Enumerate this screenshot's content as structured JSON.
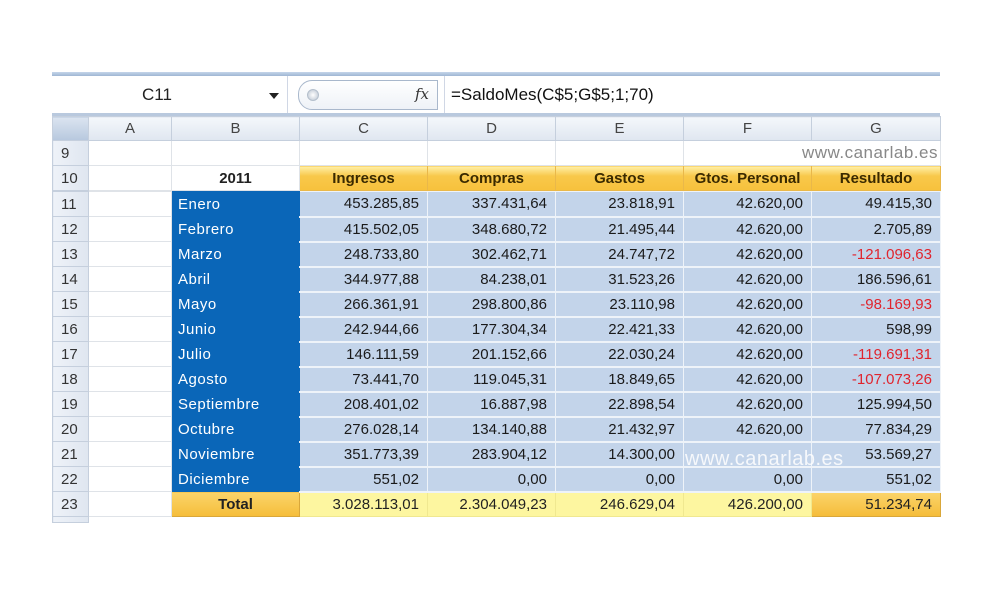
{
  "formula_bar": {
    "name_box": "C11",
    "fx_label": "fx",
    "formula": "=SaldoMes(C$5;G$5;1;70)"
  },
  "columns": [
    "A",
    "B",
    "C",
    "D",
    "E",
    "F",
    "G"
  ],
  "watermark": "www.canarlab.es",
  "rows": {
    "r9": "9",
    "r10": "10"
  },
  "table": {
    "year": "2011",
    "headers": [
      "Ingresos",
      "Compras",
      "Gastos",
      "Gtos. Personal",
      "Resultado"
    ],
    "data": [
      {
        "row": "11",
        "month": "Enero",
        "ingresos": "453.285,85",
        "compras": "337.431,64",
        "gastos": "23.818,91",
        "personal": "42.620,00",
        "resultado": "49.415,30"
      },
      {
        "row": "12",
        "month": "Febrero",
        "ingresos": "415.502,05",
        "compras": "348.680,72",
        "gastos": "21.495,44",
        "personal": "42.620,00",
        "resultado": "2.705,89"
      },
      {
        "row": "13",
        "month": "Marzo",
        "ingresos": "248.733,80",
        "compras": "302.462,71",
        "gastos": "24.747,72",
        "personal": "42.620,00",
        "resultado": "-121.096,63"
      },
      {
        "row": "14",
        "month": "Abril",
        "ingresos": "344.977,88",
        "compras": "84.238,01",
        "gastos": "31.523,26",
        "personal": "42.620,00",
        "resultado": "186.596,61"
      },
      {
        "row": "15",
        "month": "Mayo",
        "ingresos": "266.361,91",
        "compras": "298.800,86",
        "gastos": "23.110,98",
        "personal": "42.620,00",
        "resultado": "-98.169,93"
      },
      {
        "row": "16",
        "month": "Junio",
        "ingresos": "242.944,66",
        "compras": "177.304,34",
        "gastos": "22.421,33",
        "personal": "42.620,00",
        "resultado": "598,99"
      },
      {
        "row": "17",
        "month": "Julio",
        "ingresos": "146.111,59",
        "compras": "201.152,66",
        "gastos": "22.030,24",
        "personal": "42.620,00",
        "resultado": "-119.691,31"
      },
      {
        "row": "18",
        "month": "Agosto",
        "ingresos": "73.441,70",
        "compras": "119.045,31",
        "gastos": "18.849,65",
        "personal": "42.620,00",
        "resultado": "-107.073,26"
      },
      {
        "row": "19",
        "month": "Septiembre",
        "ingresos": "208.401,02",
        "compras": "16.887,98",
        "gastos": "22.898,54",
        "personal": "42.620,00",
        "resultado": "125.994,50"
      },
      {
        "row": "20",
        "month": "Octubre",
        "ingresos": "276.028,14",
        "compras": "134.140,88",
        "gastos": "21.432,97",
        "personal": "42.620,00",
        "resultado": "77.834,29"
      },
      {
        "row": "21",
        "month": "Noviembre",
        "ingresos": "351.773,39",
        "compras": "283.904,12",
        "gastos": "14.300,00",
        "personal": "",
        "resultado": "53.569,27"
      },
      {
        "row": "22",
        "month": "Diciembre",
        "ingresos": "551,02",
        "compras": "0,00",
        "gastos": "0,00",
        "personal": "0,00",
        "resultado": "551,02"
      }
    ],
    "total": {
      "row": "23",
      "label": "Total",
      "ingresos": "3.028.113,01",
      "compras": "2.304.049,23",
      "gastos": "246.629,04",
      "personal": "426.200,00",
      "resultado": "51.234,74"
    }
  },
  "colors": {
    "month_bg": "#0a66b8",
    "header_bg": "#f7c13c",
    "cell_bg": "#c3d4ea",
    "total_bg": "#fdf6a0",
    "negative": "#e0242d"
  }
}
